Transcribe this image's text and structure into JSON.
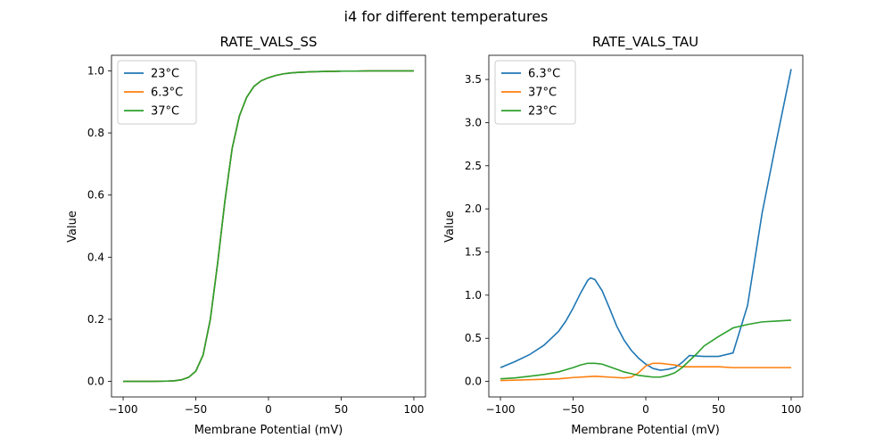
{
  "figure": {
    "suptitle": "i4 for different temperatures"
  },
  "chart_data": [
    {
      "type": "line",
      "title": "RATE_VALS_SS",
      "xlabel": "Membrane Potential (mV)",
      "ylabel": "Value",
      "xlim": [
        -108,
        108
      ],
      "ylim": [
        -0.05,
        1.05
      ],
      "xticks": [
        -100,
        -50,
        0,
        50,
        100
      ],
      "yticks": [
        0.0,
        0.2,
        0.4,
        0.6,
        0.8,
        1.0
      ],
      "ytick_labels": [
        "0.0",
        "0.2",
        "0.4",
        "0.6",
        "0.8",
        "1.0"
      ],
      "grid": false,
      "legend_position": "top-left",
      "x": [
        -100,
        -90,
        -80,
        -70,
        -65,
        -60,
        -55,
        -50,
        -45,
        -40,
        -35,
        -30,
        -25,
        -20,
        -15,
        -10,
        -5,
        0,
        5,
        10,
        15,
        20,
        30,
        40,
        50,
        60,
        70,
        80,
        90,
        100
      ],
      "series": [
        {
          "name": "23°C",
          "color": "#1f77b4",
          "values": [
            0.0,
            0.0,
            0.0,
            0.001,
            0.002,
            0.005,
            0.013,
            0.033,
            0.085,
            0.2,
            0.38,
            0.58,
            0.75,
            0.855,
            0.915,
            0.95,
            0.968,
            0.978,
            0.985,
            0.99,
            0.993,
            0.995,
            0.997,
            0.998,
            0.999,
            0.999,
            1.0,
            1.0,
            1.0,
            1.0
          ]
        },
        {
          "name": "6.3°C",
          "color": "#ff7f0e",
          "values": [
            0.0,
            0.0,
            0.0,
            0.001,
            0.002,
            0.005,
            0.013,
            0.033,
            0.085,
            0.2,
            0.38,
            0.58,
            0.75,
            0.855,
            0.915,
            0.95,
            0.968,
            0.978,
            0.985,
            0.99,
            0.993,
            0.995,
            0.997,
            0.998,
            0.999,
            0.999,
            1.0,
            1.0,
            1.0,
            1.0
          ]
        },
        {
          "name": "37°C",
          "color": "#2ca02c",
          "values": [
            0.0,
            0.0,
            0.0,
            0.001,
            0.002,
            0.005,
            0.013,
            0.033,
            0.085,
            0.2,
            0.38,
            0.58,
            0.75,
            0.855,
            0.915,
            0.95,
            0.968,
            0.978,
            0.985,
            0.99,
            0.993,
            0.995,
            0.997,
            0.998,
            0.999,
            0.999,
            1.0,
            1.0,
            1.0,
            1.0
          ]
        }
      ]
    },
    {
      "type": "line",
      "title": "RATE_VALS_TAU",
      "xlabel": "Membrane Potential (mV)",
      "ylabel": "Value",
      "xlim": [
        -108,
        108
      ],
      "ylim": [
        -0.18,
        3.78
      ],
      "xticks": [
        -100,
        -50,
        0,
        50,
        100
      ],
      "yticks": [
        0.0,
        0.5,
        1.0,
        1.5,
        2.0,
        2.5,
        3.0,
        3.5
      ],
      "ytick_labels": [
        "0.0",
        "0.5",
        "1.0",
        "1.5",
        "2.0",
        "2.5",
        "3.0",
        "3.5"
      ],
      "grid": false,
      "legend_position": "top-left",
      "series": [
        {
          "name": "6.3°C",
          "color": "#1f77b4",
          "x": [
            -100,
            -90,
            -80,
            -70,
            -60,
            -55,
            -50,
            -45,
            -40,
            -38,
            -35,
            -30,
            -25,
            -20,
            -15,
            -10,
            -5,
            0,
            5,
            10,
            15,
            20,
            25,
            30,
            40,
            50,
            60,
            70,
            80,
            90,
            100
          ],
          "values": [
            0.16,
            0.23,
            0.31,
            0.42,
            0.58,
            0.7,
            0.85,
            1.02,
            1.17,
            1.2,
            1.18,
            1.05,
            0.85,
            0.64,
            0.48,
            0.36,
            0.27,
            0.2,
            0.15,
            0.13,
            0.14,
            0.16,
            0.22,
            0.3,
            0.29,
            0.29,
            0.33,
            0.88,
            1.95,
            2.8,
            3.62
          ]
        },
        {
          "name": "37°C",
          "color": "#ff7f0e",
          "x": [
            -100,
            -80,
            -70,
            -60,
            -50,
            -40,
            -35,
            -30,
            -25,
            -20,
            -15,
            -10,
            -5,
            0,
            5,
            10,
            15,
            20,
            25,
            30,
            35,
            40,
            50,
            60,
            70,
            80,
            90,
            100
          ],
          "values": [
            0.01,
            0.02,
            0.025,
            0.03,
            0.045,
            0.055,
            0.06,
            0.055,
            0.05,
            0.045,
            0.04,
            0.05,
            0.1,
            0.18,
            0.21,
            0.21,
            0.2,
            0.19,
            0.17,
            0.17,
            0.17,
            0.17,
            0.17,
            0.16,
            0.16,
            0.16,
            0.16,
            0.16
          ]
        },
        {
          "name": "23°C",
          "color": "#2ca02c",
          "x": [
            -100,
            -90,
            -80,
            -70,
            -60,
            -50,
            -45,
            -40,
            -35,
            -30,
            -25,
            -20,
            -15,
            -10,
            -5,
            0,
            5,
            10,
            15,
            20,
            25,
            30,
            35,
            40,
            50,
            60,
            70,
            80,
            90,
            100
          ],
          "values": [
            0.03,
            0.04,
            0.06,
            0.08,
            0.11,
            0.16,
            0.19,
            0.21,
            0.21,
            0.2,
            0.17,
            0.14,
            0.11,
            0.09,
            0.07,
            0.06,
            0.05,
            0.05,
            0.07,
            0.1,
            0.16,
            0.24,
            0.32,
            0.41,
            0.52,
            0.62,
            0.66,
            0.69,
            0.7,
            0.71
          ]
        }
      ]
    }
  ]
}
